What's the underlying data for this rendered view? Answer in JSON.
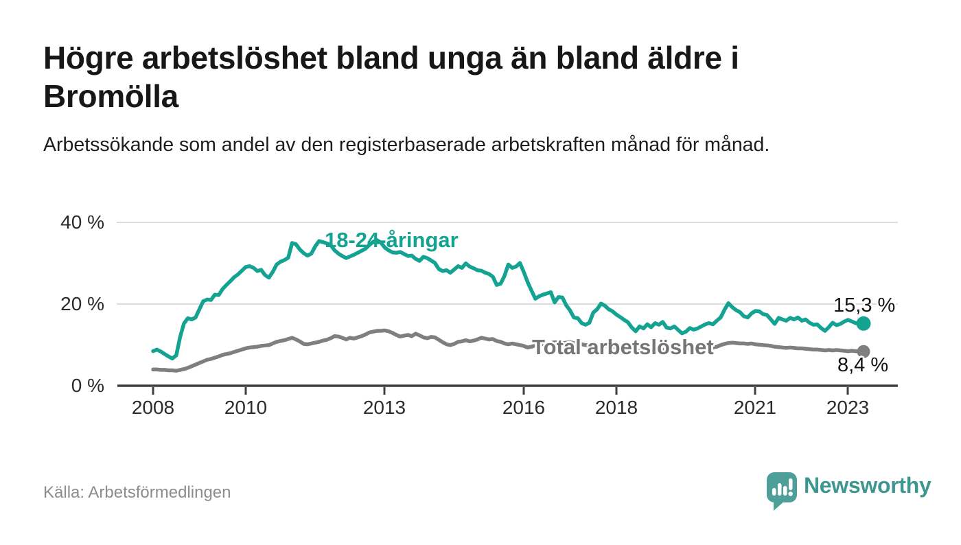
{
  "page": {
    "title": "Högre arbetslöshet bland unga än bland äldre i Bromölla",
    "subtitle": "Arbetssökande som andel av den registerbaserade arbetskraften månad för månad.",
    "source": "Källa: Arbetsförmedlingen",
    "brand": "Newsworthy"
  },
  "colors": {
    "accent_teal": "#14a392",
    "logo_teal": "#4da099",
    "wordmark_teal": "#3e978f",
    "series_gray": "#7f7f7f",
    "grid": "#d2d2d2",
    "axis": "#3f3f3f",
    "text_dark": "#171717",
    "text_muted": "#8c8c8c"
  },
  "chart_data": {
    "type": "line",
    "title": "Högre arbetslöshet bland unga än bland äldre i Bromölla",
    "subtitle": "Arbetssökande som andel av den registerbaserade arbetskraften månad för månad.",
    "unit": "%",
    "x_start": "2008-01",
    "x_end": "2023-05",
    "x_interval": "monthly",
    "x_tick_labels": [
      "2008",
      "2010",
      "2013",
      "2016",
      "2018",
      "2021",
      "2023"
    ],
    "x_tick_years": [
      2008,
      2010,
      2013,
      2016,
      2018,
      2021,
      2023
    ],
    "y_tick_labels": [
      "40 %",
      "20 %",
      "0 %"
    ],
    "y_tick_values": [
      40,
      20,
      0
    ],
    "ylim": [
      0,
      42
    ],
    "grid": "horizontal",
    "legend_position": "inline-labels",
    "series": [
      {
        "name": "18-24-åringar",
        "color": "#14a392",
        "end_label": "15,3 %",
        "end_value": 15.3,
        "values": [
          8.5,
          8.9,
          8.4,
          7.8,
          7.2,
          6.7,
          7.5,
          12.0,
          15.3,
          16.6,
          16.3,
          16.8,
          18.8,
          20.8,
          21.2,
          21.1,
          22.4,
          22.3,
          23.8,
          24.8,
          25.7,
          26.7,
          27.4,
          28.3,
          29.2,
          29.4,
          29.0,
          28.2,
          28.5,
          27.2,
          26.6,
          28.0,
          29.8,
          30.5,
          30.9,
          31.5,
          35.1,
          34.8,
          33.5,
          32.6,
          32.0,
          32.5,
          34.3,
          35.6,
          35.3,
          35.0,
          34.6,
          33.3,
          32.5,
          31.9,
          31.4,
          31.8,
          32.2,
          32.7,
          33.2,
          33.7,
          34.6,
          35.4,
          35.8,
          35.2,
          34.0,
          33.3,
          32.8,
          32.7,
          32.9,
          32.4,
          31.9,
          32.0,
          31.2,
          30.7,
          31.7,
          31.4,
          30.8,
          30.2,
          28.7,
          28.2,
          28.4,
          27.8,
          28.6,
          29.4,
          29.0,
          30.1,
          29.3,
          28.9,
          28.4,
          28.3,
          27.8,
          27.5,
          26.8,
          24.8,
          25.1,
          27.0,
          29.8,
          29.0,
          29.3,
          30.2,
          28.0,
          25.5,
          23.4,
          21.4,
          22.0,
          22.4,
          22.7,
          23.0,
          20.5,
          21.8,
          21.7,
          19.8,
          18.5,
          16.8,
          16.6,
          15.4,
          15.0,
          15.5,
          18.0,
          18.8,
          20.2,
          19.7,
          18.8,
          18.3,
          17.5,
          16.9,
          16.2,
          15.6,
          14.3,
          13.4,
          14.6,
          14.1,
          15.1,
          14.4,
          15.4,
          15.0,
          15.7,
          14.3,
          14.1,
          14.6,
          13.7,
          12.9,
          13.3,
          14.2,
          13.8,
          14.1,
          14.6,
          15.1,
          15.4,
          15.1,
          16.0,
          16.8,
          18.7,
          20.3,
          19.3,
          18.6,
          18.1,
          17.1,
          16.8,
          17.8,
          18.4,
          18.3,
          17.6,
          17.4,
          16.3,
          15.2,
          16.7,
          16.3,
          16.0,
          16.7,
          16.3,
          16.8,
          16.0,
          16.3,
          15.5,
          15.0,
          15.1,
          14.2,
          13.5,
          14.4,
          15.5,
          14.9,
          15.2,
          15.8,
          16.2,
          15.8,
          15.4,
          15.1,
          15.3
        ]
      },
      {
        "name": "Total arbetslöshet",
        "color": "#7f7f7f",
        "end_label": "8,4 %",
        "end_value": 8.4,
        "values": [
          4.0,
          4.0,
          3.9,
          3.9,
          3.8,
          3.8,
          3.7,
          3.9,
          4.1,
          4.4,
          4.8,
          5.2,
          5.6,
          6.0,
          6.4,
          6.6,
          6.9,
          7.2,
          7.6,
          7.8,
          8.0,
          8.3,
          8.6,
          8.9,
          9.2,
          9.4,
          9.5,
          9.6,
          9.8,
          9.9,
          10.0,
          10.4,
          10.8,
          11.0,
          11.2,
          11.5,
          11.8,
          11.4,
          10.9,
          10.3,
          10.2,
          10.4,
          10.6,
          10.8,
          11.1,
          11.3,
          11.7,
          12.2,
          12.1,
          11.8,
          11.4,
          11.8,
          11.6,
          11.9,
          12.2,
          12.6,
          13.1,
          13.3,
          13.5,
          13.5,
          13.6,
          13.4,
          13.0,
          12.5,
          12.1,
          12.3,
          12.5,
          12.2,
          12.8,
          12.4,
          11.9,
          11.7,
          12.0,
          11.9,
          11.3,
          10.7,
          10.2,
          10.0,
          10.3,
          10.8,
          10.9,
          11.2,
          10.9,
          11.1,
          11.4,
          11.8,
          11.6,
          11.4,
          11.5,
          11.0,
          10.8,
          10.4,
          10.2,
          10.4,
          10.2,
          10.0,
          9.8,
          9.4,
          9.6,
          9.9,
          10.1,
          10.2,
          10.4,
          10.5,
          10.7,
          10.6,
          10.5,
          10.6,
          10.7,
          10.5,
          10.4,
          10.2,
          10.0,
          9.9,
          9.8,
          9.9,
          10.0,
          9.8,
          9.7,
          9.6,
          9.5,
          9.3,
          9.1,
          9.0,
          8.8,
          8.7,
          8.6,
          8.5,
          8.4,
          8.5,
          8.6,
          8.7,
          8.8,
          8.9,
          9.1,
          9.0,
          8.9,
          8.8,
          8.9,
          8.9,
          9.0,
          9.0,
          9.1,
          9.2,
          9.3,
          9.4,
          9.6,
          10.0,
          10.3,
          10.5,
          10.6,
          10.5,
          10.4,
          10.4,
          10.3,
          10.4,
          10.2,
          10.1,
          10.0,
          9.9,
          9.8,
          9.6,
          9.5,
          9.4,
          9.3,
          9.4,
          9.3,
          9.2,
          9.2,
          9.1,
          9.0,
          8.9,
          8.9,
          8.8,
          8.7,
          8.8,
          8.7,
          8.8,
          8.7,
          8.6,
          8.5,
          8.6,
          8.5,
          8.4,
          8.4
        ]
      }
    ]
  }
}
